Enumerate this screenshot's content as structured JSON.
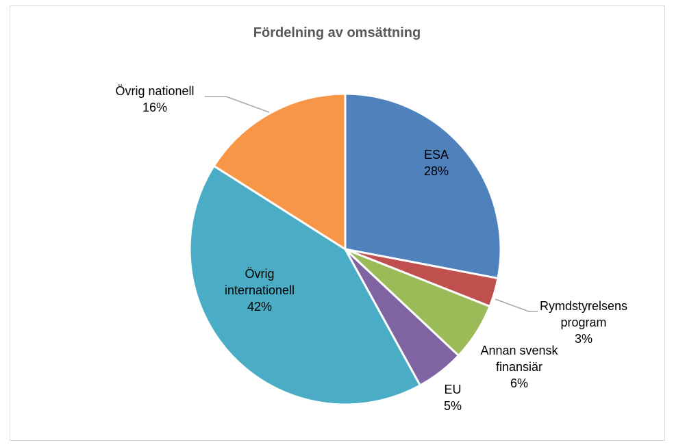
{
  "chart_data": {
    "type": "pie",
    "title": "Fördelning av omsättning",
    "slices": [
      {
        "label": "ESA",
        "value": 28,
        "pct_label": "28%",
        "color": "#4f81bd"
      },
      {
        "label": "Rymdstyrelsens program",
        "value": 3,
        "pct_label": "3%",
        "color": "#c0504d"
      },
      {
        "label": "Annan svensk finansiär",
        "value": 6,
        "pct_label": "6%",
        "color": "#9bbb59"
      },
      {
        "label": "EU",
        "value": 5,
        "pct_label": "5%",
        "color": "#8064a2"
      },
      {
        "label": "Övrig internationell",
        "value": 42,
        "pct_label": "42%",
        "color": "#4bacc6"
      },
      {
        "label": "Övrig nationell",
        "value": 16,
        "pct_label": "16%",
        "color": "#f79646"
      }
    ],
    "label_lines": [
      [
        "ESA",
        "28%"
      ],
      [
        "Rymdstyrelsens",
        "program",
        "3%"
      ],
      [
        "Annan svensk",
        "finansiär",
        "6%"
      ],
      [
        "EU",
        "5%"
      ],
      [
        "Övrig",
        "internationell",
        "42%"
      ],
      [
        "Övrig nationell",
        "16%"
      ]
    ]
  }
}
